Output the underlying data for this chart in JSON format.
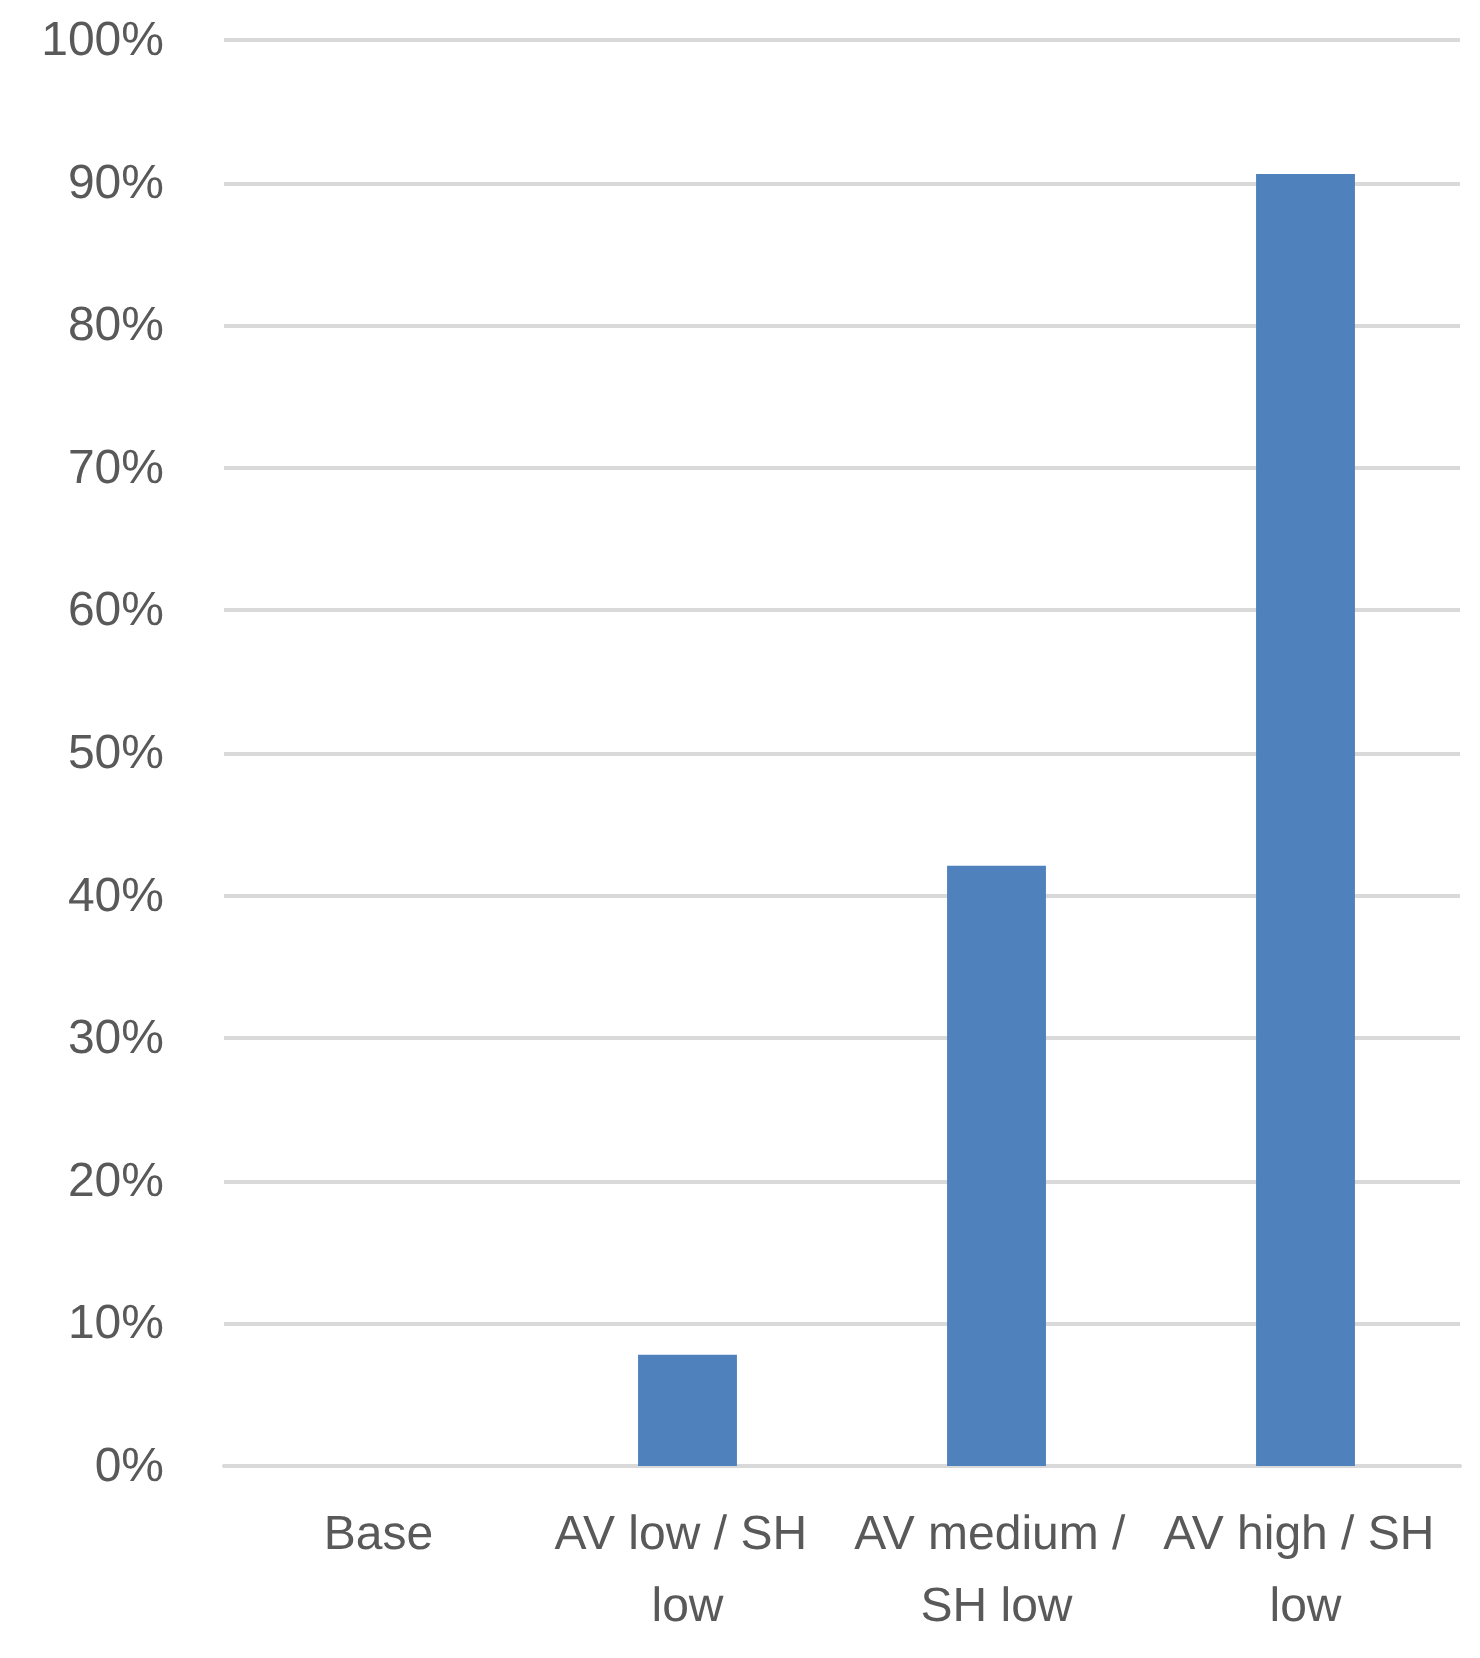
{
  "chart_data": {
    "type": "bar",
    "categories": [
      "Base",
      "AV low / SH low",
      "AV medium / SH low",
      "AV high / SH low"
    ],
    "values": [
      0,
      7.8,
      42.1,
      90.6
    ],
    "color": "#4f81bd",
    "ylim": [
      0,
      100
    ],
    "yticks": [
      {
        "value": 0,
        "label": "0%"
      },
      {
        "value": 10,
        "label": "10%"
      },
      {
        "value": 20,
        "label": "20%"
      },
      {
        "value": 30,
        "label": "30%"
      },
      {
        "value": 40,
        "label": "40%"
      },
      {
        "value": 50,
        "label": "50%"
      },
      {
        "value": 60,
        "label": "60%"
      },
      {
        "value": 70,
        "label": "70%"
      },
      {
        "value": 80,
        "label": "80%"
      },
      {
        "value": 90,
        "label": "90%"
      },
      {
        "value": 100,
        "label": "100%"
      }
    ],
    "grid": "y"
  }
}
